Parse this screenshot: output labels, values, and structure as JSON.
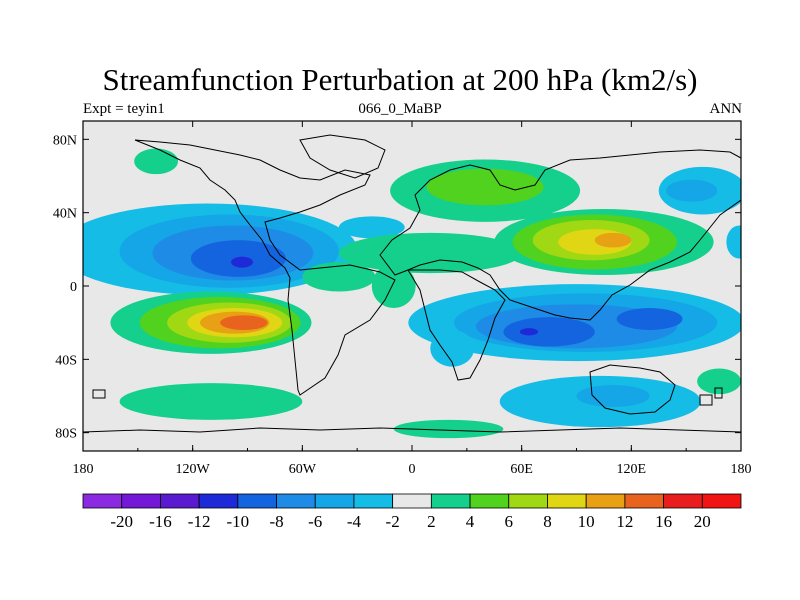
{
  "title": "Streamfunction Perturbation at 200 hPa (km2/s)",
  "subtitle_left": "Expt = teyin1",
  "subtitle_center": "066_0_MaBP",
  "subtitle_right": "ANN",
  "x_ticks": [
    "180",
    "120W",
    "60W",
    "0",
    "60E",
    "120E",
    "180"
  ],
  "x_tick_values": [
    -180,
    -120,
    -60,
    0,
    60,
    120,
    180
  ],
  "y_ticks": [
    "80N",
    "40N",
    "0",
    "40S",
    "80S"
  ],
  "y_tick_values": [
    80,
    40,
    0,
    -40,
    -80
  ],
  "colorbar": {
    "labels": [
      "-20",
      "-16",
      "-12",
      "-10",
      "-8",
      "-6",
      "-4",
      "-2",
      "2",
      "4",
      "6",
      "8",
      "10",
      "12",
      "16",
      "20"
    ],
    "colors": [
      "#8a2be2",
      "#7418d8",
      "#5a1ad0",
      "#1e2ad8",
      "#1464e0",
      "#1e8ce6",
      "#14a6e6",
      "#14bce6",
      "#e8e8e8",
      "#14d08c",
      "#50d21e",
      "#a0d814",
      "#e0d614",
      "#e8a014",
      "#e8641e",
      "#e81e1e",
      "#f01414"
    ]
  },
  "field": {
    "background": "#e8e8e8",
    "blobs": [
      {
        "lon": -112,
        "lat": 20,
        "rlon": 82,
        "rlat": 25,
        "level": -2
      },
      {
        "lon": -100,
        "lat": 19,
        "rlon": 60,
        "rlat": 20,
        "level": -4
      },
      {
        "lon": -98,
        "lat": 18,
        "rlon": 44,
        "rlat": 15,
        "level": -6
      },
      {
        "lon": -95,
        "lat": 15,
        "rlon": 26,
        "rlat": 10,
        "level": -8
      },
      {
        "lon": -93,
        "lat": 13,
        "rlon": 6,
        "rlat": 3,
        "level": -10
      },
      {
        "lon": -22,
        "lat": 32,
        "rlon": 18,
        "rlat": 6,
        "level": -2
      },
      {
        "lon": 159,
        "lat": 52,
        "rlon": 24,
        "rlat": 13,
        "level": -2
      },
      {
        "lon": 153,
        "lat": 52,
        "rlon": 14,
        "rlat": 6,
        "level": -4
      },
      {
        "lon": 179,
        "lat": 24,
        "rlon": 7,
        "rlat": 9,
        "level": -2
      },
      {
        "lon": 90,
        "lat": -20,
        "rlon": 92,
        "rlat": 21,
        "level": -2
      },
      {
        "lon": 95,
        "lat": -20,
        "rlon": 72,
        "rlat": 16,
        "level": -4
      },
      {
        "lon": 90,
        "lat": -22,
        "rlon": 55,
        "rlat": 12,
        "level": -6
      },
      {
        "lon": 75,
        "lat": -25,
        "rlon": 25,
        "rlat": 8,
        "level": -8
      },
      {
        "lon": 130,
        "lat": -18,
        "rlon": 18,
        "rlat": 6,
        "level": -8
      },
      {
        "lon": 64,
        "lat": -25,
        "rlon": 5,
        "rlat": 2,
        "level": -10
      },
      {
        "lon": 22,
        "lat": -34,
        "rlon": 12,
        "rlat": 10,
        "level": -2
      },
      {
        "lon": 103,
        "lat": -63,
        "rlon": 55,
        "rlat": 14,
        "level": -2
      },
      {
        "lon": 110,
        "lat": -60,
        "rlon": 20,
        "rlat": 6,
        "level": -4
      },
      {
        "lon": -40,
        "lat": 5,
        "rlon": 20,
        "rlat": 8,
        "level": 2
      },
      {
        "lon": -10,
        "lat": 0,
        "rlon": 12,
        "rlat": 12,
        "level": 2
      },
      {
        "lon": -140,
        "lat": 68,
        "rlon": 12,
        "rlat": 7,
        "level": 2
      },
      {
        "lon": 40,
        "lat": 52,
        "rlon": 52,
        "rlat": 17,
        "level": 2
      },
      {
        "lon": 40,
        "lat": 54,
        "rlon": 32,
        "rlat": 10,
        "level": 4
      },
      {
        "lon": 10,
        "lat": 18,
        "rlon": 50,
        "rlat": 11,
        "level": 2
      },
      {
        "lon": 105,
        "lat": 24,
        "rlon": 60,
        "rlat": 18,
        "level": 2
      },
      {
        "lon": 100,
        "lat": 24,
        "rlon": 45,
        "rlat": 15,
        "level": 4
      },
      {
        "lon": 98,
        "lat": 25,
        "rlon": 32,
        "rlat": 11,
        "level": 6
      },
      {
        "lon": 100,
        "lat": 24,
        "rlon": 20,
        "rlat": 7,
        "level": 8
      },
      {
        "lon": 110,
        "lat": 25,
        "rlon": 10,
        "rlat": 4,
        "level": 10
      },
      {
        "lon": -110,
        "lat": -20,
        "rlon": 55,
        "rlat": 17,
        "level": 2
      },
      {
        "lon": -105,
        "lat": -20,
        "rlon": 44,
        "rlat": 14,
        "level": 4
      },
      {
        "lon": -100,
        "lat": -20,
        "rlon": 34,
        "rlat": 11,
        "level": 6
      },
      {
        "lon": -97,
        "lat": -20,
        "rlon": 26,
        "rlat": 8,
        "level": 8
      },
      {
        "lon": -97,
        "lat": -20,
        "rlon": 19,
        "rlat": 6,
        "level": 10
      },
      {
        "lon": -92,
        "lat": -20,
        "rlon": 13,
        "rlat": 4,
        "level": 12
      },
      {
        "lon": -110,
        "lat": -63,
        "rlon": 50,
        "rlat": 10,
        "level": 2
      },
      {
        "lon": 20,
        "lat": -78,
        "rlon": 30,
        "rlat": 5,
        "level": 2
      },
      {
        "lon": 168,
        "lat": -52,
        "rlon": 12,
        "rlat": 7,
        "level": 2
      }
    ]
  }
}
